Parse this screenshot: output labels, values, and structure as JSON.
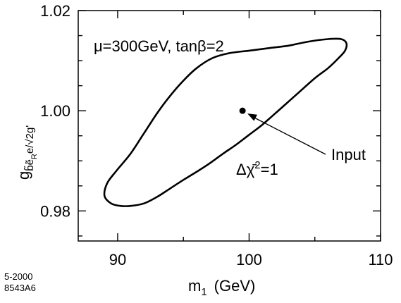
{
  "chart_data": {
    "type": "line",
    "x_axis": {
      "label_main": "m",
      "label_sub": "1",
      "label_units": "(GeV)",
      "range": [
        87,
        110
      ],
      "ticks": [
        90,
        100,
        110
      ],
      "tick_labels": [
        "90",
        "100",
        "110"
      ]
    },
    "y_axis": {
      "label_g": "g",
      "label_sub": "b̃ẽ",
      "label_subsub": "R",
      "label_tail": "e/√2g'",
      "range": [
        0.974,
        1.02
      ],
      "ticks": [
        0.98,
        1.0,
        1.02
      ],
      "tick_labels": [
        "0.98",
        "1.00",
        "1.02"
      ]
    },
    "annotations": {
      "params": "μ=300GeV, tanβ=2",
      "input_label": "Input",
      "contour_label_prefix": "Δχ̄",
      "contour_label_sup": "2",
      "contour_label_suffix": "=1"
    },
    "input_point": {
      "x": 99.5,
      "y": 1.0
    },
    "contour": [
      [
        89.0,
        0.983
      ],
      [
        89.2,
        0.9855
      ],
      [
        89.9,
        0.988
      ],
      [
        91.0,
        0.9915
      ],
      [
        92.0,
        0.9955
      ],
      [
        93.0,
        0.9995
      ],
      [
        94.0,
        1.003
      ],
      [
        95.0,
        1.006
      ],
      [
        96.0,
        1.0085
      ],
      [
        97.2,
        1.0105
      ],
      [
        98.5,
        1.0115
      ],
      [
        100.0,
        1.012
      ],
      [
        101.5,
        1.0125
      ],
      [
        103.0,
        1.013
      ],
      [
        104.5,
        1.0138
      ],
      [
        106.0,
        1.0143
      ],
      [
        107.0,
        1.0143
      ],
      [
        107.4,
        1.0135
      ],
      [
        107.3,
        1.012
      ],
      [
        106.8,
        1.0105
      ],
      [
        106.0,
        1.0085
      ],
      [
        105.0,
        1.0065
      ],
      [
        103.5,
        1.003
      ],
      [
        102.0,
        0.9995
      ],
      [
        101.0,
        0.9972
      ],
      [
        100.0,
        0.9952
      ],
      [
        99.0,
        0.9932
      ],
      [
        98.0,
        0.9914
      ],
      [
        97.0,
        0.9895
      ],
      [
        96.0,
        0.9878
      ],
      [
        95.0,
        0.9862
      ],
      [
        94.0,
        0.9845
      ],
      [
        93.0,
        0.9828
      ],
      [
        92.0,
        0.9815
      ],
      [
        91.0,
        0.981
      ],
      [
        90.2,
        0.981
      ],
      [
        89.5,
        0.9815
      ],
      [
        89.0,
        0.983
      ]
    ]
  },
  "footer": {
    "date_code": "5-2000",
    "figure_code": "8543A6"
  }
}
